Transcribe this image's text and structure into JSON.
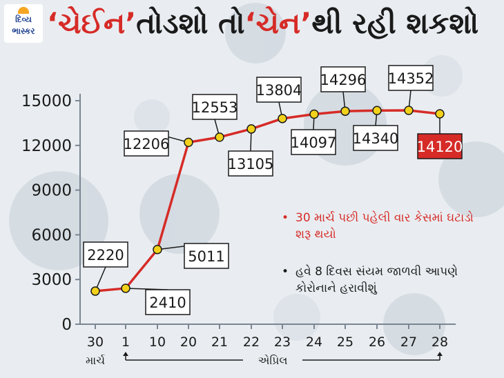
{
  "header": {
    "logo_line1": "દિવ્ય",
    "logo_line2": "ભાસ્કર",
    "title_part1": "‘ચેઈન’",
    "title_part2": " તોડશો તો ",
    "title_part3": "‘ચેન’",
    "title_part4": "થી રહી શકશો"
  },
  "notes": [
    {
      "text": "30 માર્ચ પછી પહેલી વાર કેસમાં ઘટાડો શરૂ થયો",
      "color": "#d62b27"
    },
    {
      "text": "હવે 8 દિવસ સંયમ જાળવી આપણે કોરોનાને હરાવીશું",
      "color": "#1a1a1a"
    }
  ],
  "chart_data": {
    "type": "line",
    "categories": [
      "30",
      "1",
      "10",
      "20",
      "21",
      "22",
      "23",
      "24",
      "25",
      "26",
      "27",
      "28"
    ],
    "values": [
      2220,
      2410,
      5011,
      12206,
      12553,
      13105,
      13804,
      14097,
      14296,
      14340,
      14352,
      14120
    ],
    "labels": [
      "2220",
      "2410",
      "5011",
      "12206",
      "12553",
      "13105",
      "13804",
      "14097",
      "14296",
      "14340",
      "14352",
      "14120"
    ],
    "yticks": [
      "0",
      "3000",
      "6000",
      "9000",
      "12000",
      "15000"
    ],
    "ylim": [
      0,
      15000
    ],
    "month_labels": {
      "march": "માર્ચ",
      "april": "એપ્રિલ"
    },
    "highlight_index": 11,
    "colors": {
      "line": "#d62b27",
      "marker": "#f2d11a",
      "highlight_box": "#d62b27",
      "axis": "#7a8591"
    }
  }
}
